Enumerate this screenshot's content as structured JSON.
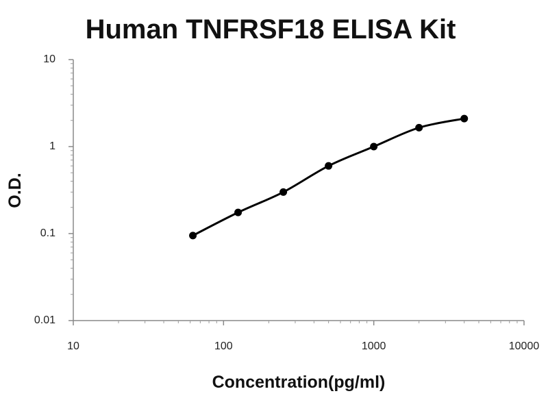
{
  "chart_data": {
    "type": "line",
    "title": "Human TNFRSF18 ELISA Kit",
    "xlabel": "Concentration(pg/ml)",
    "ylabel": "O.D.",
    "x": [
      62.5,
      125,
      250,
      500,
      1000,
      2000,
      4000
    ],
    "series": [
      {
        "values": [
          0.095,
          0.175,
          0.3,
          0.6,
          1.0,
          1.65,
          2.1
        ],
        "color": "#000000"
      }
    ],
    "xlim": [
      10,
      10000
    ],
    "xticks": [
      10,
      100,
      1000,
      10000
    ],
    "ylim": [
      0.01,
      10
    ],
    "yticks": [
      0.01,
      0.1,
      1,
      10
    ],
    "xscale": "log",
    "yscale": "log",
    "markers": true,
    "grid": false
  }
}
